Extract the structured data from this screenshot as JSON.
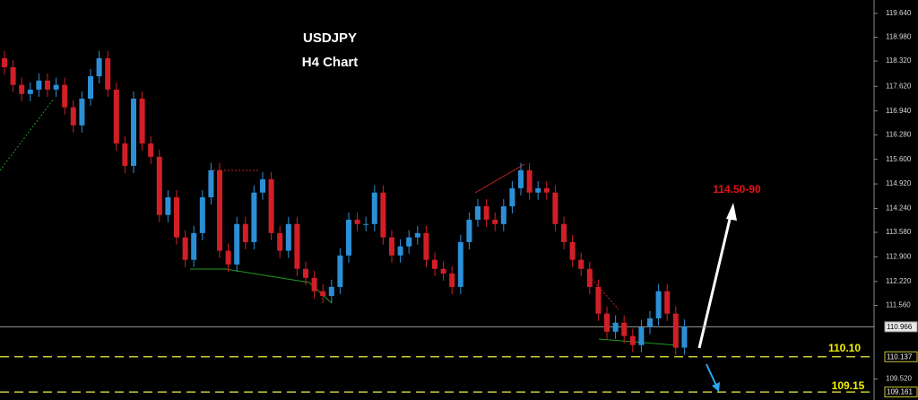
{
  "chart_data": {
    "type": "candlestick",
    "title": "USDJPY",
    "subtitle": "H4 Chart",
    "up_color": "#2c8fd6",
    "down_color": "#d11f27",
    "ylim": [
      108.94,
      120.01
    ],
    "yticks": [
      {
        "value": 119.64,
        "label": "119.640"
      },
      {
        "value": 118.98,
        "label": "118.980"
      },
      {
        "value": 118.32,
        "label": "118.320"
      },
      {
        "value": 117.62,
        "label": "117.620"
      },
      {
        "value": 116.94,
        "label": "116.940"
      },
      {
        "value": 116.28,
        "label": "116.280"
      },
      {
        "value": 115.6,
        "label": "115.600"
      },
      {
        "value": 114.92,
        "label": "114.920"
      },
      {
        "value": 114.24,
        "label": "114.240"
      },
      {
        "value": 113.58,
        "label": "113.580"
      },
      {
        "value": 112.9,
        "label": "112.900"
      },
      {
        "value": 112.22,
        "label": "112.220"
      },
      {
        "value": 111.56,
        "label": "111.560"
      },
      {
        "value": 109.52,
        "label": "109.520"
      }
    ],
    "price_lines": [
      {
        "value": 110.966,
        "label": "110.966",
        "color": "#9a9a9a",
        "style": "solid"
      },
      {
        "value": 110.137,
        "label": "110.137",
        "color": "#c8c832",
        "style": "dashed"
      },
      {
        "value": 109.161,
        "label": "109.161",
        "color": "#c8c832",
        "style": "dashed"
      }
    ],
    "annotations": [
      {
        "text": "114.50-90",
        "color": "#e8101a"
      },
      {
        "text": "110.10",
        "color": "#f2f200"
      },
      {
        "text": "109.15",
        "color": "#f2f200"
      }
    ],
    "open": [
      118.4,
      118.15,
      117.66,
      117.41,
      117.53,
      117.78,
      117.53,
      117.66,
      117.04,
      116.54,
      117.28,
      117.9,
      118.4,
      117.53,
      116.04,
      115.42,
      117.28,
      116.04,
      115.67,
      114.06,
      114.55,
      113.44,
      112.82,
      113.56,
      114.55,
      115.3,
      113.07,
      112.69,
      113.81,
      113.31,
      114.68,
      115.05,
      113.56,
      113.07,
      113.81,
      112.57,
      112.32,
      111.95,
      111.82,
      112.07,
      112.94,
      113.93,
      113.81,
      113.81,
      114.68,
      113.44,
      112.94,
      113.19,
      113.44,
      113.56,
      112.82,
      112.57,
      112.44,
      112.07,
      113.31,
      113.93,
      114.3,
      113.93,
      113.81,
      114.3,
      114.8,
      115.3,
      114.68,
      114.8,
      114.68,
      113.81,
      113.31,
      112.82,
      112.57,
      112.07,
      111.33,
      110.83,
      111.08,
      110.71,
      110.46,
      110.96,
      111.2,
      111.95,
      111.33,
      110.39
    ],
    "high": [
      118.6,
      118.35,
      117.86,
      117.73,
      117.98,
      117.98,
      117.86,
      117.86,
      117.24,
      117.48,
      118.1,
      118.6,
      118.6,
      117.73,
      116.24,
      117.48,
      117.48,
      116.24,
      115.87,
      114.75,
      114.75,
      113.64,
      113.76,
      114.75,
      115.5,
      115.5,
      113.27,
      114.01,
      114.01,
      114.88,
      115.25,
      115.25,
      113.76,
      114.01,
      114.01,
      112.77,
      112.52,
      112.15,
      112.27,
      113.14,
      114.13,
      114.13,
      114.01,
      114.88,
      114.88,
      113.64,
      113.39,
      113.64,
      113.76,
      113.76,
      113.02,
      112.77,
      112.64,
      113.51,
      114.13,
      114.5,
      114.5,
      114.13,
      114.5,
      115.0,
      115.5,
      115.5,
      115.0,
      115.0,
      114.88,
      114.01,
      113.51,
      113.02,
      112.77,
      112.27,
      111.53,
      111.28,
      111.28,
      110.91,
      111.16,
      111.4,
      112.15,
      112.15,
      111.53,
      111.17
    ],
    "low": [
      117.95,
      117.46,
      117.21,
      117.21,
      117.33,
      117.33,
      117.33,
      116.84,
      116.34,
      116.34,
      117.08,
      117.7,
      117.33,
      115.84,
      115.22,
      115.22,
      115.84,
      115.47,
      113.86,
      113.86,
      113.24,
      112.62,
      112.62,
      113.36,
      114.35,
      112.87,
      112.49,
      112.49,
      113.11,
      113.11,
      114.48,
      113.36,
      112.87,
      112.87,
      112.37,
      112.12,
      111.75,
      111.62,
      111.62,
      111.87,
      112.74,
      113.61,
      113.61,
      113.61,
      113.24,
      112.74,
      112.74,
      112.99,
      113.24,
      112.62,
      112.37,
      112.24,
      111.87,
      111.87,
      113.11,
      113.73,
      113.73,
      113.61,
      113.61,
      114.1,
      114.6,
      114.48,
      114.48,
      114.48,
      113.61,
      113.11,
      112.62,
      112.37,
      111.87,
      111.13,
      110.63,
      110.63,
      110.51,
      110.26,
      110.26,
      110.76,
      111.0,
      111.13,
      110.19,
      110.19
    ],
    "close": [
      118.15,
      117.66,
      117.41,
      117.53,
      117.78,
      117.53,
      117.66,
      117.04,
      116.54,
      117.28,
      117.9,
      118.4,
      117.53,
      116.04,
      115.42,
      117.28,
      116.04,
      115.67,
      114.06,
      114.55,
      113.44,
      112.82,
      113.56,
      114.55,
      115.3,
      113.07,
      112.69,
      113.81,
      113.31,
      114.68,
      115.05,
      113.56,
      113.07,
      113.81,
      112.57,
      112.32,
      111.95,
      111.82,
      112.07,
      112.94,
      113.93,
      113.81,
      113.81,
      114.68,
      113.44,
      112.94,
      113.19,
      113.44,
      113.56,
      112.82,
      112.57,
      112.44,
      112.07,
      113.31,
      113.93,
      114.3,
      113.93,
      113.81,
      114.3,
      114.8,
      115.3,
      114.68,
      114.8,
      114.68,
      113.81,
      113.31,
      112.82,
      112.57,
      112.07,
      111.33,
      110.83,
      111.08,
      110.71,
      110.46,
      110.96,
      111.2,
      111.95,
      111.33,
      110.39,
      110.97
    ]
  }
}
